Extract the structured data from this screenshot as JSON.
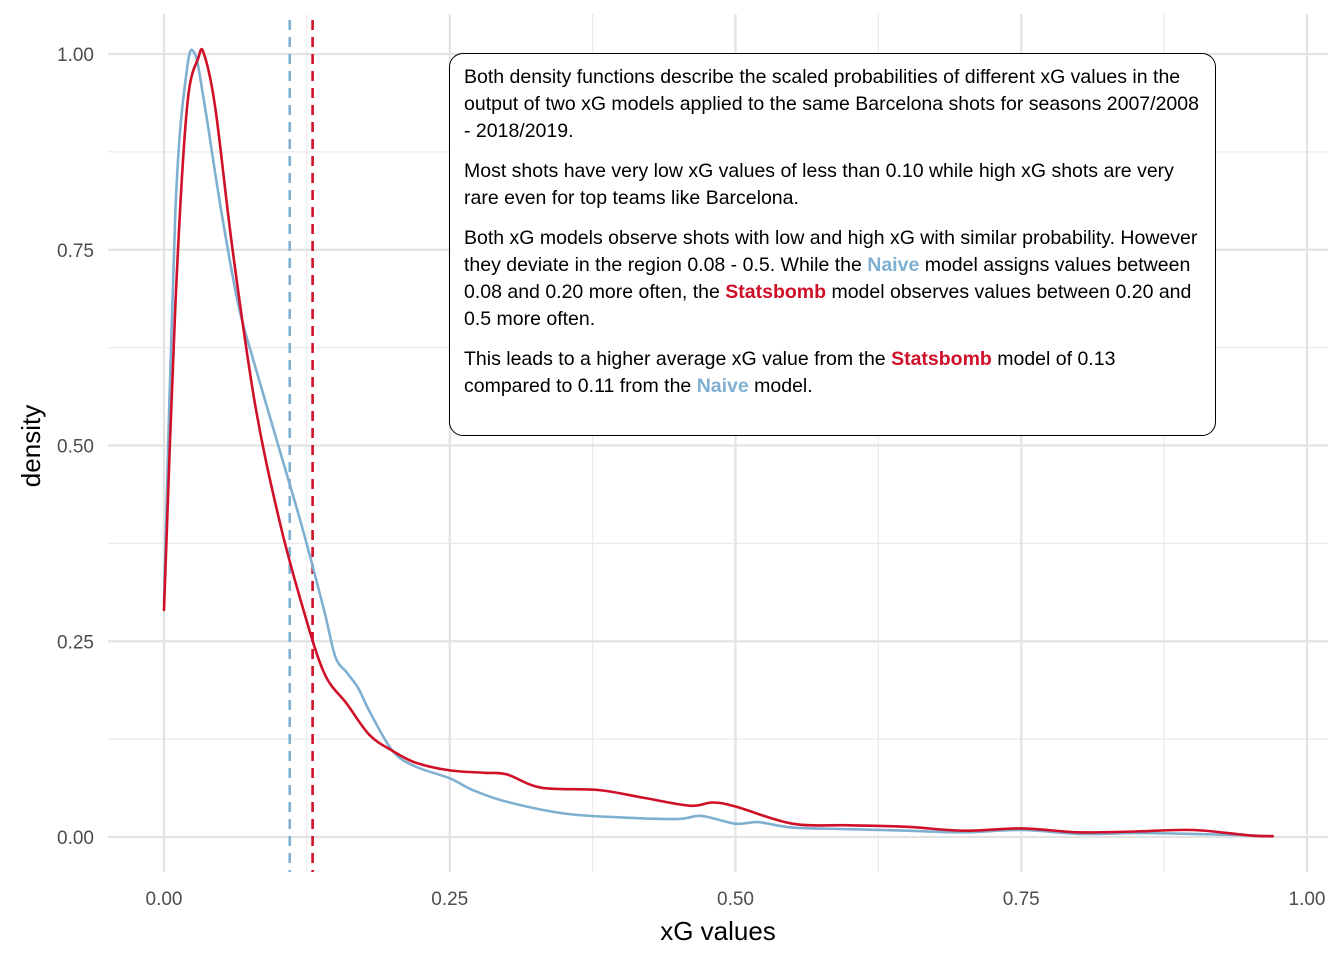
{
  "chart_data": {
    "type": "line",
    "xlabel": "xG values",
    "ylabel": "density",
    "xlim": [
      0,
      1
    ],
    "ylim": [
      0,
      1
    ],
    "x_ticks": [
      "0.00",
      "0.25",
      "0.50",
      "0.75",
      "1.00"
    ],
    "y_ticks": [
      "0.00",
      "0.25",
      "0.50",
      "0.75",
      "1.00"
    ],
    "grid": true,
    "series": [
      {
        "name": "Naive",
        "color": "#7fb0d2",
        "mean": 0.11,
        "x": [
          0,
          0.01,
          0.02,
          0.027,
          0.035,
          0.05,
          0.065,
          0.08,
          0.1,
          0.12,
          0.14,
          0.15,
          0.16,
          0.17,
          0.18,
          0.2,
          0.22,
          0.25,
          0.27,
          0.3,
          0.35,
          0.4,
          0.45,
          0.47,
          0.5,
          0.52,
          0.55,
          0.6,
          0.65,
          0.7,
          0.75,
          0.8,
          0.85,
          0.9,
          0.95,
          0.97
        ],
        "values": [
          0.3,
          0.8,
          0.98,
          1.0,
          0.94,
          0.8,
          0.68,
          0.6,
          0.5,
          0.4,
          0.29,
          0.23,
          0.21,
          0.19,
          0.16,
          0.11,
          0.09,
          0.075,
          0.06,
          0.045,
          0.03,
          0.025,
          0.023,
          0.027,
          0.017,
          0.019,
          0.012,
          0.01,
          0.008,
          0.006,
          0.009,
          0.004,
          0.005,
          0.004,
          0.002,
          0.001
        ]
      },
      {
        "name": "Statsbomb",
        "color": "#cf1028",
        "mean": 0.13,
        "x": [
          0,
          0.01,
          0.02,
          0.03,
          0.035,
          0.045,
          0.06,
          0.08,
          0.1,
          0.12,
          0.14,
          0.16,
          0.18,
          0.2,
          0.22,
          0.25,
          0.28,
          0.3,
          0.33,
          0.38,
          0.42,
          0.46,
          0.48,
          0.5,
          0.55,
          0.6,
          0.65,
          0.7,
          0.75,
          0.8,
          0.85,
          0.9,
          0.95,
          0.97
        ],
        "values": [
          0.29,
          0.68,
          0.93,
          0.995,
          1.0,
          0.93,
          0.75,
          0.55,
          0.41,
          0.3,
          0.21,
          0.17,
          0.13,
          0.11,
          0.095,
          0.085,
          0.082,
          0.08,
          0.063,
          0.06,
          0.05,
          0.04,
          0.044,
          0.039,
          0.017,
          0.015,
          0.013,
          0.008,
          0.011,
          0.006,
          0.007,
          0.009,
          0.002,
          0.001
        ]
      }
    ],
    "annotation": {
      "p1": "Both density functions describe the scaled probabilities of different xG values in the output of two xG models applied to the same Barcelona shots for seasons 2007/2008 - 2018/2019.",
      "p2": "Most shots have very low xG values of less than 0.10 while high xG shots are very rare even for top teams like Barcelona.",
      "p3_a": "Both xG models observe shots with low and high xG with similar probability. However they deviate in the region 0.08 - 0.5. While the ",
      "p3_naive": "Naive",
      "p3_b": " model assigns values between 0.08 and 0.20 more often, the ",
      "p3_statsbomb": "Statsbomb",
      "p3_c": " model observes values between 0.20 and 0.5 more often.",
      "p4_a": "This leads to a higher average xG value from the ",
      "p4_statsbomb": "Statsbomb",
      "p4_b": " model of 0.13 compared to 0.11 from the ",
      "p4_naive": "Naive",
      "p4_c": " model."
    }
  }
}
